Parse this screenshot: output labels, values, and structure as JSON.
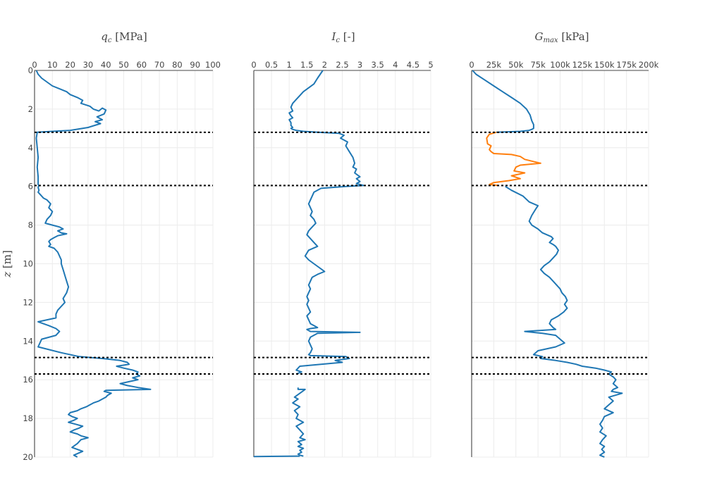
{
  "chart_data": [
    {
      "type": "line",
      "title": "q_c [MPa]",
      "title_symbol": "q",
      "title_sub": "c",
      "title_unit": "[MPa]",
      "ylabel_symbol": "z",
      "ylabel_unit": "[m]",
      "xlim": [
        0,
        100
      ],
      "ylim": [
        0,
        20
      ],
      "y_reversed": true,
      "x_axis_position": "top",
      "xticks": [
        0,
        10,
        20,
        30,
        40,
        50,
        60,
        70,
        80,
        90,
        100
      ],
      "xtick_labels": [
        "0",
        "10",
        "20",
        "30",
        "40",
        "50",
        "60",
        "70",
        "80",
        "90",
        "100"
      ],
      "yticks": [
        0,
        2,
        4,
        6,
        8,
        10,
        12,
        14,
        16,
        18,
        20
      ],
      "ytick_labels": [
        "0",
        "2",
        "4",
        "6",
        "8",
        "10",
        "12",
        "14",
        "16",
        "18",
        "20"
      ],
      "grid": true,
      "series": [
        {
          "color": "#1f77b4",
          "x": [
            1,
            2,
            4,
            7,
            10,
            14,
            18,
            20,
            24,
            27,
            26,
            31,
            33,
            36,
            38,
            40,
            39,
            35,
            38,
            34,
            37,
            30,
            20,
            10,
            1.5,
            1,
            1.5,
            2,
            1.5,
            2,
            2,
            2.5,
            2,
            2.5,
            2,
            3,
            4,
            5,
            7,
            9,
            8,
            10,
            9,
            7,
            6,
            10,
            14,
            16,
            13,
            15,
            18,
            13,
            11,
            9,
            8,
            9,
            8,
            11,
            13,
            14,
            15,
            15,
            16,
            17,
            18,
            19,
            18,
            16,
            17,
            15,
            13,
            12,
            12,
            2,
            8,
            12,
            14,
            12,
            4,
            3,
            2,
            15,
            25,
            38,
            48,
            52,
            53,
            46,
            50,
            55,
            58,
            57,
            59,
            55,
            58,
            53,
            48,
            52,
            58,
            65,
            40,
            39,
            43,
            41,
            40,
            38,
            36,
            33,
            31,
            29,
            26,
            24,
            20,
            19,
            21,
            24,
            22,
            19,
            23,
            27,
            25,
            22,
            20,
            24,
            26,
            30,
            26,
            24,
            21,
            27,
            22,
            24
          ],
          "y": [
            0,
            0.2,
            0.4,
            0.6,
            0.8,
            0.95,
            1.1,
            1.25,
            1.4,
            1.55,
            1.7,
            1.85,
            2.0,
            2.1,
            1.95,
            2.05,
            2.25,
            2.4,
            2.55,
            2.65,
            2.75,
            2.95,
            3.1,
            3.15,
            3.2,
            3.5,
            4.0,
            4.5,
            5.0,
            5.5,
            5.9,
            5.95,
            6.05,
            6.2,
            6.3,
            6.4,
            6.5,
            6.6,
            6.7,
            6.9,
            7.1,
            7.3,
            7.5,
            7.7,
            7.9,
            8.0,
            8.1,
            8.2,
            8.3,
            8.4,
            8.45,
            8.55,
            8.65,
            8.75,
            8.85,
            9.0,
            9.1,
            9.2,
            9.4,
            9.6,
            9.8,
            10.0,
            10.3,
            10.6,
            10.9,
            11.2,
            11.5,
            11.8,
            12.0,
            12.2,
            12.4,
            12.6,
            12.8,
            13.0,
            13.2,
            13.35,
            13.5,
            13.7,
            13.9,
            14.1,
            14.3,
            14.6,
            14.8,
            14.9,
            15.0,
            15.1,
            15.2,
            15.3,
            15.4,
            15.5,
            15.6,
            15.7,
            15.8,
            15.9,
            16.0,
            16.1,
            16.2,
            16.3,
            16.4,
            16.5,
            16.55,
            16.6,
            16.7,
            16.8,
            16.9,
            17.0,
            17.1,
            17.2,
            17.3,
            17.4,
            17.5,
            17.6,
            17.7,
            17.8,
            17.9,
            18.0,
            18.1,
            18.2,
            18.3,
            18.4,
            18.5,
            18.6,
            18.7,
            18.8,
            18.9,
            19.0,
            19.1,
            19.3,
            19.5,
            19.7,
            19.9,
            20.0
          ]
        }
      ]
    },
    {
      "type": "line",
      "title": "I_c [-]",
      "title_symbol": "I",
      "title_sub": "c",
      "title_unit": "[-]",
      "xlim": [
        0,
        5
      ],
      "ylim": [
        0,
        20
      ],
      "y_reversed": true,
      "x_axis_position": "top",
      "xticks": [
        0,
        0.5,
        1,
        1.5,
        2,
        2.5,
        3,
        3.5,
        4,
        4.5,
        5
      ],
      "xtick_labels": [
        "0",
        "0.5",
        "1",
        "1.5",
        "2",
        "2.5",
        "3",
        "3.5",
        "4",
        "4.5",
        "5"
      ],
      "yticks": [
        0,
        2,
        4,
        6,
        8,
        10,
        12,
        14,
        16,
        18,
        20
      ],
      "grid": true,
      "series": [
        {
          "color": "#1f77b4",
          "x": [
            1.95,
            1.8,
            1.7,
            1.55,
            1.4,
            1.3,
            1.2,
            1.1,
            1.05,
            1.1,
            1.0,
            1.05,
            1.1,
            1.0,
            1.05,
            1.05,
            1.1,
            1.05,
            1.1,
            1.2,
            1.4,
            1.8,
            2.4,
            2.55,
            2.45,
            2.65,
            2.6,
            2.7,
            2.8,
            2.85,
            2.8,
            2.9,
            2.85,
            3.0,
            2.9,
            3.0,
            2.9,
            3.1,
            2.6,
            1.9,
            1.7,
            1.65,
            1.6,
            1.55,
            1.6,
            1.65,
            1.6,
            1.7,
            1.75,
            1.65,
            1.55,
            1.5,
            1.6,
            1.7,
            1.8,
            1.55,
            1.5,
            1.45,
            1.55,
            1.7,
            1.85,
            2.0,
            1.8,
            1.65,
            1.6,
            1.55,
            1.6,
            1.55,
            1.5,
            1.55,
            1.5,
            1.55,
            1.6,
            1.5,
            1.55,
            1.6,
            1.7,
            1.8,
            1.6,
            1.5,
            1.55,
            1.6,
            3.0,
            1.8,
            1.6,
            1.55,
            1.6,
            1.65,
            1.6,
            1.55,
            1.6,
            2.6,
            2.7,
            2.3,
            2.4,
            2.5,
            1.3,
            1.25,
            1.2,
            1.35,
            1.2
          ],
          "y": [
            0,
            0.4,
            0.7,
            0.9,
            1.1,
            1.3,
            1.5,
            1.7,
            1.9,
            2.1,
            2.2,
            2.35,
            2.45,
            2.55,
            2.7,
            2.85,
            2.95,
            3.0,
            3.05,
            3.1,
            3.15,
            3.2,
            3.25,
            3.35,
            3.5,
            3.7,
            3.9,
            4.2,
            4.5,
            4.8,
            5.0,
            5.1,
            5.3,
            5.5,
            5.6,
            5.75,
            5.85,
            5.95,
            6.0,
            6.1,
            6.3,
            6.5,
            6.7,
            6.9,
            7.1,
            7.3,
            7.5,
            7.7,
            7.9,
            8.1,
            8.3,
            8.5,
            8.7,
            8.9,
            9.1,
            9.3,
            9.45,
            9.6,
            9.8,
            10.0,
            10.2,
            10.4,
            10.55,
            10.7,
            10.9,
            11.1,
            11.3,
            11.5,
            11.7,
            11.9,
            12.1,
            12.3,
            12.5,
            12.7,
            12.9,
            13.1,
            13.2,
            13.3,
            13.35,
            13.4,
            13.45,
            13.5,
            13.55,
            13.6,
            13.8,
            14.0,
            14.2,
            14.4,
            14.6,
            14.7,
            14.75,
            14.8,
            14.9,
            15.0,
            15.05,
            15.1,
            15.3,
            15.4,
            15.5,
            15.6,
            15.7
          ]
        },
        {
          "color": "#1f77b4",
          "x": [
            1.25,
            1.25,
            1.45,
            1.15,
            1.25,
            1.1,
            1.3,
            1.15,
            1.25,
            1.2,
            1.4,
            1.2,
            1.3,
            1.4,
            1.3,
            1.45,
            1.25,
            1.35,
            1.25,
            1.4,
            1.3,
            1.35,
            1.25,
            1.3,
            1.4
          ],
          "y": [
            16.4,
            16.5,
            16.5,
            16.9,
            17.0,
            17.2,
            17.4,
            17.6,
            17.8,
            18.0,
            18.2,
            18.4,
            18.6,
            18.8,
            19.0,
            19.1,
            19.2,
            19.35,
            19.45,
            19.55,
            19.65,
            19.75,
            19.85,
            19.9,
            19.95
          ]
        },
        {
          "color": "#1f77b4",
          "x": [
            1.3,
            0.0
          ],
          "y": [
            19.95,
            19.97
          ]
        }
      ]
    },
    {
      "type": "line",
      "title": "G_max [kPa]",
      "title_symbol": "G",
      "title_sub": "max",
      "title_unit": "[kPa]",
      "xlim": [
        0,
        200000
      ],
      "ylim": [
        0,
        20
      ],
      "y_reversed": true,
      "x_axis_position": "top",
      "xticks": [
        0,
        25000,
        50000,
        75000,
        100000,
        125000,
        150000,
        175000,
        200000
      ],
      "xtick_labels": [
        "0",
        "25k",
        "50k",
        "75k",
        "100k",
        "125k",
        "150k",
        "175k",
        "200k"
      ],
      "yticks": [
        0,
        2,
        4,
        6,
        8,
        10,
        12,
        14,
        16,
        18,
        20
      ],
      "grid": true,
      "series": [
        {
          "color": "#1f77b4",
          "x": [
            1000,
            5000,
            15000,
            25000,
            35000,
            45000,
            55000,
            62000,
            66000,
            68000,
            70000,
            70000,
            68000,
            65000,
            55000,
            40000,
            28000
          ],
          "y": [
            0,
            0.2,
            0.5,
            0.8,
            1.1,
            1.4,
            1.7,
            2.0,
            2.3,
            2.6,
            2.8,
            3.0,
            3.05,
            3.1,
            3.15,
            3.18,
            3.2
          ]
        },
        {
          "color": "#ff7f0e",
          "x": [
            28000,
            20000,
            17000,
            18000,
            22000,
            20000,
            22000,
            25000,
            45000,
            55000,
            60000,
            78000,
            55000,
            50000,
            48000,
            60000,
            45000,
            55000,
            42000,
            25000,
            20000,
            30000
          ],
          "y": [
            3.2,
            3.3,
            3.5,
            3.8,
            3.9,
            4.1,
            4.2,
            4.3,
            4.35,
            4.45,
            4.6,
            4.8,
            4.9,
            5.0,
            5.2,
            5.3,
            5.45,
            5.6,
            5.7,
            5.8,
            5.9,
            5.95
          ]
        },
        {
          "color": "#1f77b4",
          "x": [
            38000,
            45000,
            58000,
            65000,
            75000,
            72000,
            68000,
            65000,
            68000,
            75000,
            80000,
            85000,
            90000,
            92000,
            88000,
            92000,
            95000,
            98000,
            96000,
            92000,
            88000,
            82000,
            78000,
            82000,
            88000,
            92000,
            96000,
            100000,
            102000,
            106000,
            108000,
            105000,
            108000,
            104000,
            98000,
            90000,
            88000,
            92000,
            95000,
            60000,
            80000,
            95000,
            100000,
            105000,
            95000,
            75000,
            70000,
            80000,
            78000,
            95000,
            108000,
            118000,
            125000,
            140000,
            150000,
            158000,
            155000,
            160000,
            163000,
            160000,
            165000,
            160000,
            158000,
            170000,
            155000,
            160000,
            155000,
            150000,
            160000,
            150000,
            148000,
            145000,
            148000,
            145000,
            152000,
            148000,
            145000,
            150000,
            147000,
            150000,
            145000,
            150000
          ],
          "y": [
            6.0,
            6.2,
            6.5,
            6.8,
            7.0,
            7.2,
            7.5,
            7.8,
            8.0,
            8.2,
            8.4,
            8.5,
            8.6,
            8.7,
            8.9,
            9.0,
            9.1,
            9.3,
            9.5,
            9.7,
            9.9,
            10.1,
            10.3,
            10.5,
            10.7,
            10.9,
            11.1,
            11.3,
            11.5,
            11.7,
            11.9,
            12.1,
            12.3,
            12.5,
            12.7,
            12.9,
            13.1,
            13.3,
            13.4,
            13.5,
            13.6,
            13.7,
            13.9,
            14.1,
            14.3,
            14.5,
            14.7,
            14.8,
            14.9,
            15.0,
            15.1,
            15.2,
            15.3,
            15.4,
            15.5,
            15.6,
            15.7,
            15.85,
            16.0,
            16.2,
            16.4,
            16.5,
            16.6,
            16.7,
            16.9,
            17.1,
            17.3,
            17.5,
            17.7,
            17.9,
            18.1,
            18.3,
            18.5,
            18.7,
            18.9,
            19.1,
            19.3,
            19.45,
            19.6,
            19.75,
            19.9,
            20.0
          ]
        }
      ]
    }
  ],
  "layer_boundaries_m": [
    3.2,
    5.95,
    14.85,
    15.7
  ],
  "layer_line_style": {
    "color": "#000000",
    "dash": "dotted"
  }
}
